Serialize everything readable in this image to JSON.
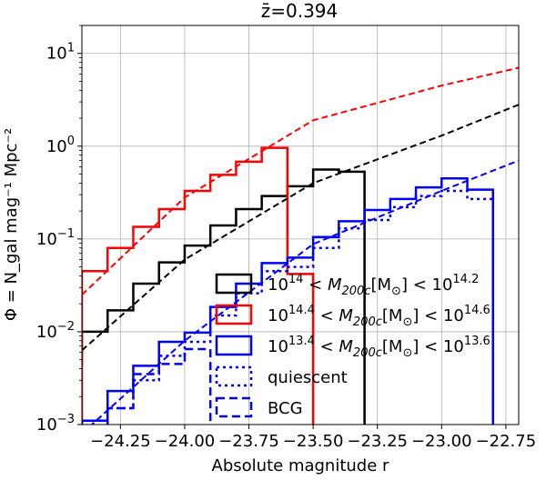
{
  "chart_data": {
    "type": "line",
    "title": "z̄=0.394",
    "xlabel": "Absolute magnitude r",
    "ylabel": "Φ = N_gal mag⁻¹ Mpc⁻²",
    "xlim": [
      -24.4,
      -22.7
    ],
    "ylim": [
      0.001,
      20
    ],
    "yscale": "log",
    "grid": true,
    "legend_placement": "lower-center",
    "x_ticks": [
      -24.25,
      -24.0,
      -23.75,
      -23.5,
      -23.25,
      -23.0,
      -22.75
    ],
    "x_tick_labels": [
      "−24.25",
      "−24.00",
      "−23.75",
      "−23.50",
      "−23.25",
      "−23.00",
      "−22.75"
    ],
    "y_ticks": [
      0.001,
      0.01,
      0.1,
      1,
      10
    ],
    "y_tick_labels": [
      {
        "base": "10",
        "exp": "−3"
      },
      {
        "base": "10",
        "exp": "−2"
      },
      {
        "base": "10",
        "exp": "−1"
      },
      {
        "base": "10",
        "exp": "0"
      },
      {
        "base": "10",
        "exp": "1"
      }
    ],
    "series": [
      {
        "name": "10^14 < M_200c[M_⊙] < 10^14.2",
        "color": "#000000",
        "style": "step",
        "edges": [
          -24.5,
          -24.4,
          -24.3,
          -24.2,
          -24.1,
          -24.0,
          -23.9,
          -23.8,
          -23.7,
          -23.6,
          -23.5,
          -23.4,
          -23.3
        ],
        "values": [
          0.0045,
          0.01,
          0.017,
          0.033,
          0.056,
          0.085,
          0.14,
          0.21,
          0.29,
          0.37,
          0.56,
          0.53
        ],
        "end_drop": 0.001
      },
      {
        "name": "10^14.4 < M_200c[M_⊙] < 10^14.6",
        "color": "#ff0000",
        "style": "step",
        "edges": [
          -24.4,
          -24.3,
          -24.2,
          -24.1,
          -24.0,
          -23.9,
          -23.8,
          -23.7,
          -23.6,
          -23.5
        ],
        "values": [
          0.045,
          0.08,
          0.135,
          0.21,
          0.33,
          0.49,
          0.68,
          0.96,
          0.042
        ],
        "end_drop": 0.001
      },
      {
        "name": "10^13.4 < M_200c[M_⊙] < 10^13.6",
        "color": "#0000ff",
        "style": "step",
        "edges": [
          -24.4,
          -24.3,
          -24.2,
          -24.1,
          -24.0,
          -23.9,
          -23.8,
          -23.7,
          -23.6,
          -23.5,
          -23.4,
          -23.3,
          -23.2,
          -23.1,
          -23.0,
          -22.9,
          -22.8
        ],
        "values": [
          0.0011,
          0.0023,
          0.0043,
          0.0078,
          0.0098,
          0.0185,
          0.033,
          0.055,
          0.063,
          0.105,
          0.155,
          0.205,
          0.27,
          0.36,
          0.45,
          0.34
        ],
        "end_drop": 0.001
      },
      {
        "name": "quiescent",
        "color": "#0000ff",
        "style": "step-dotted",
        "edges": [
          -24.4,
          -24.3,
          -24.2,
          -24.1,
          -24.0,
          -23.9,
          -23.8,
          -23.7,
          -23.6,
          -23.5,
          -23.4,
          -23.3,
          -23.2,
          -23.1,
          -23.0,
          -22.9,
          -22.8
        ],
        "values": [
          0.0011,
          0.0015,
          0.003,
          0.0055,
          0.0078,
          0.015,
          0.026,
          0.045,
          0.05,
          0.08,
          0.13,
          0.16,
          0.22,
          0.29,
          0.33,
          0.27
        ],
        "end_drop": 0.001
      },
      {
        "name": "BCG",
        "color": "#0000ff",
        "style": "step-dashed",
        "edges": [
          -24.3,
          -24.2,
          -24.1,
          -24.0,
          -23.9
        ],
        "values": [
          0.0015,
          0.0035,
          0.0045,
          0.0065
        ],
        "end_drop": 0.001
      },
      {
        "name": "",
        "color": "#000000",
        "style": "fit-dashed",
        "points": [
          [
            -24.4,
            0.0063
          ],
          [
            -24.0,
            0.06
          ],
          [
            -23.5,
            0.4
          ],
          [
            -23.0,
            1.3
          ],
          [
            -22.7,
            2.8
          ]
        ]
      },
      {
        "name": "",
        "color": "#ff0000",
        "style": "fit-dashed",
        "points": [
          [
            -24.4,
            0.025
          ],
          [
            -24.0,
            0.28
          ],
          [
            -23.5,
            1.9
          ],
          [
            -23.0,
            4.5
          ],
          [
            -22.7,
            7.0
          ]
        ]
      },
      {
        "name": "",
        "color": "#0000ff",
        "style": "fit-dashed",
        "points": [
          [
            -24.4,
            0.0008
          ],
          [
            -24.0,
            0.008
          ],
          [
            -23.5,
            0.088
          ],
          [
            -23.0,
            0.33
          ],
          [
            -22.7,
            0.7
          ]
        ]
      }
    ],
    "legend": [
      {
        "id": "black",
        "color": "#000000",
        "dash": "solid",
        "label": {
          "pre": "10",
          "sup1": "14",
          "mid": " < M",
          "sub": "200c",
          "mid2": "[M",
          "sub2": "⊙",
          "mid3": "] < 10",
          "sup2": "14.2"
        }
      },
      {
        "id": "red",
        "color": "#ff0000",
        "dash": "solid",
        "label": {
          "pre": "10",
          "sup1": "14.4",
          "mid": " < M",
          "sub": "200c",
          "mid2": "[M",
          "sub2": "⊙",
          "mid3": "] < 10",
          "sup2": "14.6"
        }
      },
      {
        "id": "blue",
        "color": "#0000ff",
        "dash": "solid",
        "label": {
          "pre": "10",
          "sup1": "13.4",
          "mid": " < M",
          "sub": "200c",
          "mid2": "[M",
          "sub2": "⊙",
          "mid3": "] < 10",
          "sup2": "13.6"
        }
      },
      {
        "id": "quiescent",
        "color": "#0000ff",
        "dash": "dotted",
        "text": "quiescent"
      },
      {
        "id": "bcg",
        "color": "#0000ff",
        "dash": "dashed",
        "text": "BCG"
      }
    ]
  }
}
